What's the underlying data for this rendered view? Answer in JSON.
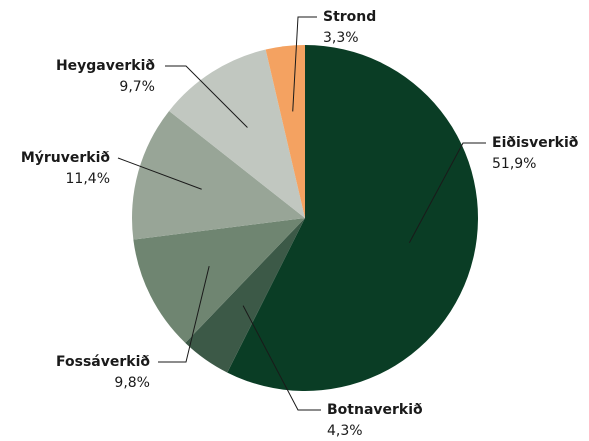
{
  "chart_data": {
    "type": "pie",
    "categories": [
      "Eiðisverkið",
      "Botnaverkið",
      "Fossáverkið",
      "Mýruverkið",
      "Heygaverkið",
      "Strond"
    ],
    "values": [
      51.9,
      4.3,
      9.8,
      11.4,
      9.7,
      3.3
    ],
    "value_labels": [
      "51,9%",
      "4,3%",
      "9,8%",
      "11,4%",
      "9,7%",
      "3,3%"
    ],
    "colors": [
      "#0a3d25",
      "#3c5947",
      "#6f8571",
      "#98a597",
      "#c1c7c0",
      "#f4a261"
    ]
  }
}
